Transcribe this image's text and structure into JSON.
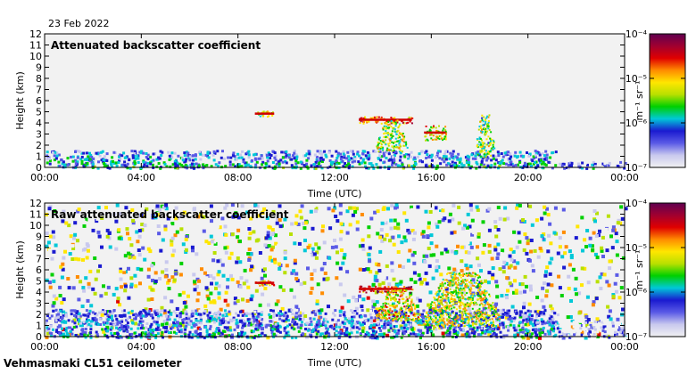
{
  "header": {
    "date": "23 Feb 2022"
  },
  "footer": {
    "instrument": "Vehmasmaki CL51 ceilometer"
  },
  "colors": {
    "colormap": [
      "#f2f2f2",
      "#c9c9ee",
      "#5a5ae6",
      "#1a1ad0",
      "#00c8d8",
      "#00d000",
      "#b8e000",
      "#ffe600",
      "#ff8c00",
      "#e00000",
      "#a00030",
      "#600050"
    ]
  },
  "chart_data": [
    {
      "type": "heatmap",
      "title": "Attenuated backscatter coefficient",
      "xlabel": "Time (UTC)",
      "ylabel": "Height (km)",
      "xticks": [
        "00:00",
        "04:00",
        "08:00",
        "12:00",
        "16:00",
        "20:00",
        "00:00"
      ],
      "yticks": [
        "0",
        "1",
        "2",
        "3",
        "4",
        "5",
        "6",
        "7",
        "8",
        "9",
        "10",
        "11",
        "12"
      ],
      "xlim_hours": [
        0,
        24
      ],
      "ylim_km": [
        0,
        12
      ],
      "colorbar": {
        "label": "m⁻¹ sr⁻¹",
        "ticks": [
          "10⁻⁷",
          "10⁻⁶",
          "10⁻⁵",
          "10⁻⁴"
        ],
        "range_log10": [
          -7,
          -4
        ]
      },
      "features": [
        {
          "kind": "boundary-layer",
          "t": [
            0,
            21.2
          ],
          "h": [
            0,
            1.6
          ],
          "log_value": -6.3
        },
        {
          "kind": "surface-layer",
          "t": [
            21.2,
            24
          ],
          "h": [
            0,
            0.6
          ],
          "log_value": -6.6
        },
        {
          "kind": "cloud-layer",
          "t": [
            8.7,
            9.5
          ],
          "h": [
            4.6,
            5.1
          ],
          "log_value": -5.3
        },
        {
          "kind": "cloud-layer",
          "t": [
            13.0,
            15.2
          ],
          "h": [
            4.0,
            4.6
          ],
          "log_value": -4.8
        },
        {
          "kind": "precipitation",
          "t": [
            13.7,
            15.0
          ],
          "h": [
            1.5,
            4.3
          ],
          "log_value": -5.4
        },
        {
          "kind": "cloud-layer",
          "t": [
            15.7,
            16.6
          ],
          "h": [
            2.5,
            3.8
          ],
          "log_value": -5.2
        },
        {
          "kind": "precipitation",
          "t": [
            17.8,
            18.6
          ],
          "h": [
            1.0,
            4.8
          ],
          "log_value": -5.5
        }
      ]
    },
    {
      "type": "heatmap",
      "title": "Raw attenuated backscatter coefficient",
      "xlabel": "Time (UTC)",
      "ylabel": "Height (km)",
      "xticks": [
        "00:00",
        "04:00",
        "08:00",
        "12:00",
        "16:00",
        "20:00",
        "00:00"
      ],
      "yticks": [
        "0",
        "1",
        "2",
        "3",
        "4",
        "5",
        "6",
        "7",
        "8",
        "9",
        "10",
        "11",
        "12"
      ],
      "xlim_hours": [
        0,
        24
      ],
      "ylim_km": [
        0,
        12
      ],
      "colorbar": {
        "label": "m⁻¹ sr⁻¹",
        "ticks": [
          "10⁻⁷",
          "10⁻⁶",
          "10⁻⁵",
          "10⁻⁴"
        ],
        "range_log10": [
          -7,
          -4
        ]
      },
      "features": [
        {
          "kind": "noise-field",
          "t": [
            0,
            24
          ],
          "h": [
            0,
            12
          ],
          "log_value": -5.6
        },
        {
          "kind": "boundary-layer",
          "t": [
            0,
            21.2
          ],
          "h": [
            0,
            2.5
          ],
          "log_value": -6.4
        },
        {
          "kind": "surface-layer",
          "t": [
            21.2,
            24
          ],
          "h": [
            0,
            1.5
          ],
          "log_value": -6.9
        },
        {
          "kind": "cloud-layer",
          "t": [
            8.7,
            9.5
          ],
          "h": [
            4.6,
            5.1
          ],
          "log_value": -4.9
        },
        {
          "kind": "cloud-layer",
          "t": [
            13.0,
            15.2
          ],
          "h": [
            4.0,
            4.6
          ],
          "log_value": -4.6
        },
        {
          "kind": "precipitation",
          "t": [
            13.7,
            15.5
          ],
          "h": [
            1.5,
            4.3
          ],
          "log_value": -5.2
        },
        {
          "kind": "precipitation",
          "t": [
            15.7,
            18.8
          ],
          "h": [
            1.0,
            5.8
          ],
          "log_value": -5.3
        }
      ]
    }
  ]
}
